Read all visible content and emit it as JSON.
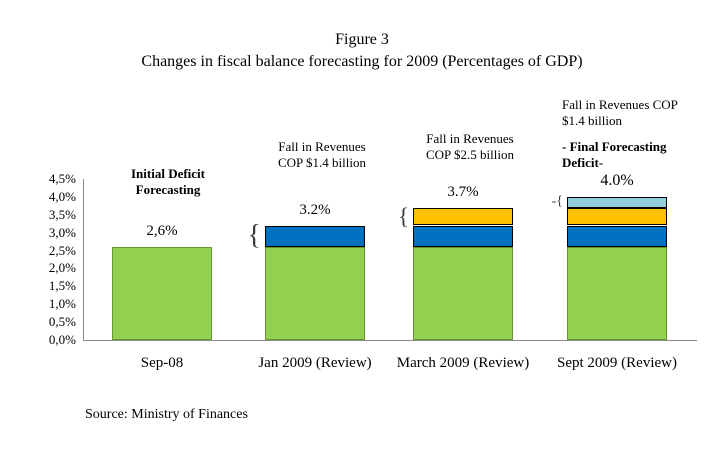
{
  "figure": {
    "title": "Figure 3",
    "subtitle": "Changes in fiscal balance forecasting for 2009 (Percentages of GDP)",
    "source": "Source: Ministry of Finances"
  },
  "chart_data": {
    "type": "bar",
    "stacked": true,
    "title": "Figure 3",
    "subtitle": "Changes in fiscal balance forecasting for 2009 (Percentages of GDP)",
    "xlabel": "",
    "ylabel": "",
    "grid": false,
    "legend": false,
    "ylim": [
      0,
      4.5
    ],
    "y_axis": {
      "min": 0,
      "max": 4.5,
      "step": 0.5,
      "tick_labels": [
        "0,0%",
        "0,5%",
        "1,0%",
        "1,5%",
        "2,0%",
        "2,5%",
        "3,0%",
        "3,5%",
        "4,0%",
        "4,5%"
      ]
    },
    "categories": [
      "Sep-08",
      "Jan 2009 (Review)",
      "March 2009 (Review)",
      "Sept 2009 (Review)"
    ],
    "series": [
      {
        "name": "Initial deficit forecasting",
        "color": "#92d050",
        "values": [
          2.6,
          2.6,
          2.6,
          2.6
        ]
      },
      {
        "name": "Fall in revenues (Jan 2009 review)",
        "color": "#0070c0",
        "values": [
          0,
          0.6,
          0.6,
          0.6
        ]
      },
      {
        "name": "Fall in revenues (March 2009 review)",
        "color": "#ffc000",
        "values": [
          0,
          0,
          0.5,
          0.5
        ]
      },
      {
        "name": "Fall in revenues (Sept 2009 review)",
        "color": "#92cddc",
        "values": [
          0,
          0,
          0,
          0.3
        ]
      }
    ],
    "bar_totals": [
      2.6,
      3.2,
      3.7,
      4.0
    ],
    "total_labels": [
      "2,6%",
      "3.2%",
      "3.7%",
      "4.0%"
    ],
    "annotations": [
      {
        "bar": 0,
        "bold": true,
        "lines": [
          "Initial Deficit",
          "Forecasting"
        ]
      },
      {
        "bar": 1,
        "bold": false,
        "lines": [
          "Fall in Revenues",
          "COP $1.4 billion"
        ]
      },
      {
        "bar": 2,
        "bold": false,
        "lines": [
          "Fall in Revenues",
          "COP $2.5 billion"
        ]
      },
      {
        "bar": 3,
        "bold": false,
        "lines": [
          "Fall in Revenues COP",
          "$1.4 billion"
        ]
      },
      {
        "bar": 3,
        "bold": true,
        "lines": [
          "- Final Forecasting",
          "Deficit-"
        ]
      }
    ],
    "braces": [
      {
        "bar": 1,
        "glyph": "{"
      },
      {
        "bar": 2,
        "glyph": "{"
      },
      {
        "bar": 3,
        "glyph": "-{"
      }
    ],
    "colors": {
      "axis": "#8a8a8a",
      "segment_border": "#000000",
      "green_border": "#67982e",
      "text": "#000000"
    }
  }
}
